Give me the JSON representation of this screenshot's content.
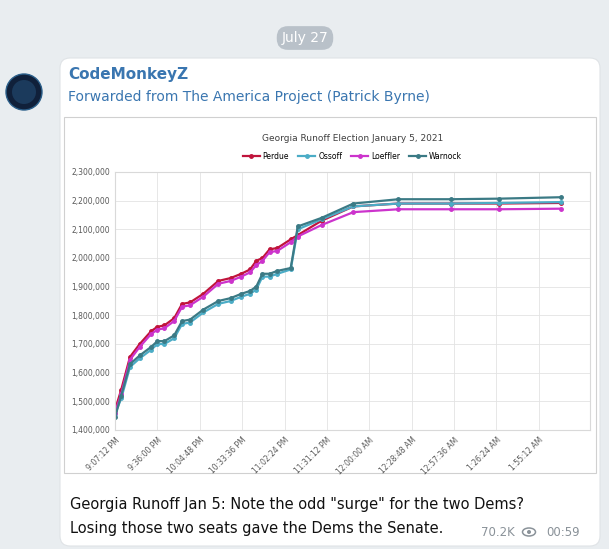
{
  "date": "July 27",
  "channel": "CodeMonkeyZ",
  "forwarded_from": "Forwarded from The America Project (Patrick Byrne)",
  "chart_data": {
    "type": "line",
    "title": "Georgia Runoff Election January 5, 2021",
    "x": [
      21.12,
      21.19,
      21.29,
      21.4,
      21.53,
      21.6,
      21.68,
      21.79,
      21.88,
      21.97,
      22.12,
      22.29,
      22.43,
      22.55,
      22.65,
      22.72,
      22.79,
      22.87,
      22.96,
      23.11,
      23.19,
      23.46,
      23.82,
      24.33,
      24.92,
      25.47,
      26.17
    ],
    "series": [
      {
        "name": "Perdue",
        "color": "#c0143c",
        "values": [
          1470000,
          1540000,
          1655000,
          1700000,
          1745000,
          1760000,
          1765000,
          1790000,
          1840000,
          1845000,
          1875000,
          1920000,
          1930000,
          1945000,
          1960000,
          1990000,
          2000000,
          2030000,
          2035000,
          2065000,
          2080000,
          2130000,
          2180000,
          2190000,
          2190000,
          2190000,
          2192000
        ]
      },
      {
        "name": "Ossoff",
        "color": "#4bacc6",
        "values": [
          1455000,
          1510000,
          1620000,
          1650000,
          1680000,
          1700000,
          1700000,
          1720000,
          1770000,
          1775000,
          1810000,
          1840000,
          1850000,
          1865000,
          1875000,
          1890000,
          1935000,
          1935000,
          1945000,
          1960000,
          2100000,
          2135000,
          2180000,
          2190000,
          2190000,
          2192000,
          2195000
        ]
      },
      {
        "name": "Loeffler",
        "color": "#cc33cc",
        "values": [
          1460000,
          1525000,
          1645000,
          1690000,
          1735000,
          1750000,
          1755000,
          1780000,
          1830000,
          1835000,
          1865000,
          1910000,
          1920000,
          1935000,
          1950000,
          1975000,
          1990000,
          2020000,
          2025000,
          2055000,
          2075000,
          2115000,
          2160000,
          2170000,
          2170000,
          2170000,
          2172000
        ]
      },
      {
        "name": "Warnock",
        "color": "#3b7a85",
        "values": [
          1445000,
          1520000,
          1630000,
          1660000,
          1690000,
          1710000,
          1710000,
          1730000,
          1780000,
          1785000,
          1820000,
          1850000,
          1860000,
          1875000,
          1885000,
          1900000,
          1945000,
          1945000,
          1955000,
          1965000,
          2110000,
          2140000,
          2190000,
          2205000,
          2205000,
          2207000,
          2212000
        ]
      }
    ],
    "xlim": [
      21.12,
      26.5
    ],
    "xticks": [
      {
        "value": 21.12,
        "label": "9:07:12 PM"
      },
      {
        "value": 21.6,
        "label": "9:36:00 PM"
      },
      {
        "value": 22.08,
        "label": "10:04:48 PM"
      },
      {
        "value": 22.56,
        "label": "10:33:36 PM"
      },
      {
        "value": 23.04,
        "label": "11:02:24 PM"
      },
      {
        "value": 23.52,
        "label": "11:31:12 PM"
      },
      {
        "value": 24.0,
        "label": "12:00:00 AM"
      },
      {
        "value": 24.48,
        "label": "12:28:48 AM"
      },
      {
        "value": 24.96,
        "label": "12:57:36 AM"
      },
      {
        "value": 25.44,
        "label": "1:26:24 AM"
      },
      {
        "value": 25.92,
        "label": "1:55:12 AM"
      }
    ],
    "ylim": [
      1400000,
      2300000
    ],
    "yticks": [
      {
        "value": 1400000,
        "label": "1,400,000"
      },
      {
        "value": 1500000,
        "label": "1,500,000"
      },
      {
        "value": 1600000,
        "label": "1,600,000"
      },
      {
        "value": 1700000,
        "label": "1,700,000"
      },
      {
        "value": 1800000,
        "label": "1,800,000"
      },
      {
        "value": 1900000,
        "label": "1,900,000"
      },
      {
        "value": 2000000,
        "label": "2,000,000"
      },
      {
        "value": 2100000,
        "label": "2,100,000"
      },
      {
        "value": 2200000,
        "label": "2,200,000"
      },
      {
        "value": 2300000,
        "label": "2,300,000"
      }
    ],
    "grid": true,
    "legend": "upper center",
    "marker": "o"
  },
  "caption": [
    "Georgia Runoff Jan 5: Note the odd \"surge\" for the two Dems?",
    "Losing those two seats gave the Dems the Senate."
  ],
  "views": "70.2K",
  "time": "00:59"
}
